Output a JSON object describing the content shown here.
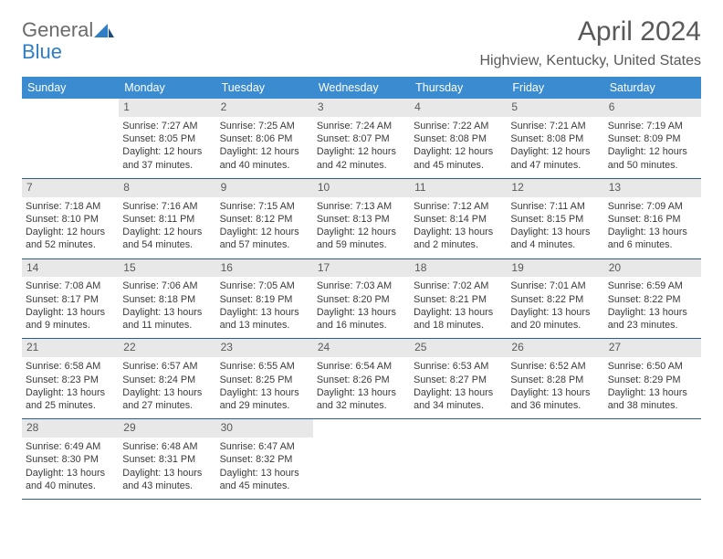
{
  "logo": {
    "word1": "General",
    "word2": "Blue"
  },
  "title": "April 2024",
  "location": "Highview, Kentucky, United States",
  "colors": {
    "header_bg": "#3a8bd0",
    "header_text": "#ffffff",
    "week_border": "#2b5f8a",
    "daynum_bg": "#e8e8e8",
    "text": "#3a3a3a",
    "title_color": "#595959",
    "logo_gray": "#6b6b6b",
    "logo_blue": "#2f7dc4"
  },
  "day_labels": [
    "Sunday",
    "Monday",
    "Tuesday",
    "Wednesday",
    "Thursday",
    "Friday",
    "Saturday"
  ],
  "weeks": [
    [
      {
        "day": "",
        "sunrise": "",
        "sunset": "",
        "daylight_l1": "",
        "daylight_l2": ""
      },
      {
        "day": "1",
        "sunrise": "Sunrise: 7:27 AM",
        "sunset": "Sunset: 8:05 PM",
        "daylight_l1": "Daylight: 12 hours",
        "daylight_l2": "and 37 minutes."
      },
      {
        "day": "2",
        "sunrise": "Sunrise: 7:25 AM",
        "sunset": "Sunset: 8:06 PM",
        "daylight_l1": "Daylight: 12 hours",
        "daylight_l2": "and 40 minutes."
      },
      {
        "day": "3",
        "sunrise": "Sunrise: 7:24 AM",
        "sunset": "Sunset: 8:07 PM",
        "daylight_l1": "Daylight: 12 hours",
        "daylight_l2": "and 42 minutes."
      },
      {
        "day": "4",
        "sunrise": "Sunrise: 7:22 AM",
        "sunset": "Sunset: 8:08 PM",
        "daylight_l1": "Daylight: 12 hours",
        "daylight_l2": "and 45 minutes."
      },
      {
        "day": "5",
        "sunrise": "Sunrise: 7:21 AM",
        "sunset": "Sunset: 8:08 PM",
        "daylight_l1": "Daylight: 12 hours",
        "daylight_l2": "and 47 minutes."
      },
      {
        "day": "6",
        "sunrise": "Sunrise: 7:19 AM",
        "sunset": "Sunset: 8:09 PM",
        "daylight_l1": "Daylight: 12 hours",
        "daylight_l2": "and 50 minutes."
      }
    ],
    [
      {
        "day": "7",
        "sunrise": "Sunrise: 7:18 AM",
        "sunset": "Sunset: 8:10 PM",
        "daylight_l1": "Daylight: 12 hours",
        "daylight_l2": "and 52 minutes."
      },
      {
        "day": "8",
        "sunrise": "Sunrise: 7:16 AM",
        "sunset": "Sunset: 8:11 PM",
        "daylight_l1": "Daylight: 12 hours",
        "daylight_l2": "and 54 minutes."
      },
      {
        "day": "9",
        "sunrise": "Sunrise: 7:15 AM",
        "sunset": "Sunset: 8:12 PM",
        "daylight_l1": "Daylight: 12 hours",
        "daylight_l2": "and 57 minutes."
      },
      {
        "day": "10",
        "sunrise": "Sunrise: 7:13 AM",
        "sunset": "Sunset: 8:13 PM",
        "daylight_l1": "Daylight: 12 hours",
        "daylight_l2": "and 59 minutes."
      },
      {
        "day": "11",
        "sunrise": "Sunrise: 7:12 AM",
        "sunset": "Sunset: 8:14 PM",
        "daylight_l1": "Daylight: 13 hours",
        "daylight_l2": "and 2 minutes."
      },
      {
        "day": "12",
        "sunrise": "Sunrise: 7:11 AM",
        "sunset": "Sunset: 8:15 PM",
        "daylight_l1": "Daylight: 13 hours",
        "daylight_l2": "and 4 minutes."
      },
      {
        "day": "13",
        "sunrise": "Sunrise: 7:09 AM",
        "sunset": "Sunset: 8:16 PM",
        "daylight_l1": "Daylight: 13 hours",
        "daylight_l2": "and 6 minutes."
      }
    ],
    [
      {
        "day": "14",
        "sunrise": "Sunrise: 7:08 AM",
        "sunset": "Sunset: 8:17 PM",
        "daylight_l1": "Daylight: 13 hours",
        "daylight_l2": "and 9 minutes."
      },
      {
        "day": "15",
        "sunrise": "Sunrise: 7:06 AM",
        "sunset": "Sunset: 8:18 PM",
        "daylight_l1": "Daylight: 13 hours",
        "daylight_l2": "and 11 minutes."
      },
      {
        "day": "16",
        "sunrise": "Sunrise: 7:05 AM",
        "sunset": "Sunset: 8:19 PM",
        "daylight_l1": "Daylight: 13 hours",
        "daylight_l2": "and 13 minutes."
      },
      {
        "day": "17",
        "sunrise": "Sunrise: 7:03 AM",
        "sunset": "Sunset: 8:20 PM",
        "daylight_l1": "Daylight: 13 hours",
        "daylight_l2": "and 16 minutes."
      },
      {
        "day": "18",
        "sunrise": "Sunrise: 7:02 AM",
        "sunset": "Sunset: 8:21 PM",
        "daylight_l1": "Daylight: 13 hours",
        "daylight_l2": "and 18 minutes."
      },
      {
        "day": "19",
        "sunrise": "Sunrise: 7:01 AM",
        "sunset": "Sunset: 8:22 PM",
        "daylight_l1": "Daylight: 13 hours",
        "daylight_l2": "and 20 minutes."
      },
      {
        "day": "20",
        "sunrise": "Sunrise: 6:59 AM",
        "sunset": "Sunset: 8:22 PM",
        "daylight_l1": "Daylight: 13 hours",
        "daylight_l2": "and 23 minutes."
      }
    ],
    [
      {
        "day": "21",
        "sunrise": "Sunrise: 6:58 AM",
        "sunset": "Sunset: 8:23 PM",
        "daylight_l1": "Daylight: 13 hours",
        "daylight_l2": "and 25 minutes."
      },
      {
        "day": "22",
        "sunrise": "Sunrise: 6:57 AM",
        "sunset": "Sunset: 8:24 PM",
        "daylight_l1": "Daylight: 13 hours",
        "daylight_l2": "and 27 minutes."
      },
      {
        "day": "23",
        "sunrise": "Sunrise: 6:55 AM",
        "sunset": "Sunset: 8:25 PM",
        "daylight_l1": "Daylight: 13 hours",
        "daylight_l2": "and 29 minutes."
      },
      {
        "day": "24",
        "sunrise": "Sunrise: 6:54 AM",
        "sunset": "Sunset: 8:26 PM",
        "daylight_l1": "Daylight: 13 hours",
        "daylight_l2": "and 32 minutes."
      },
      {
        "day": "25",
        "sunrise": "Sunrise: 6:53 AM",
        "sunset": "Sunset: 8:27 PM",
        "daylight_l1": "Daylight: 13 hours",
        "daylight_l2": "and 34 minutes."
      },
      {
        "day": "26",
        "sunrise": "Sunrise: 6:52 AM",
        "sunset": "Sunset: 8:28 PM",
        "daylight_l1": "Daylight: 13 hours",
        "daylight_l2": "and 36 minutes."
      },
      {
        "day": "27",
        "sunrise": "Sunrise: 6:50 AM",
        "sunset": "Sunset: 8:29 PM",
        "daylight_l1": "Daylight: 13 hours",
        "daylight_l2": "and 38 minutes."
      }
    ],
    [
      {
        "day": "28",
        "sunrise": "Sunrise: 6:49 AM",
        "sunset": "Sunset: 8:30 PM",
        "daylight_l1": "Daylight: 13 hours",
        "daylight_l2": "and 40 minutes."
      },
      {
        "day": "29",
        "sunrise": "Sunrise: 6:48 AM",
        "sunset": "Sunset: 8:31 PM",
        "daylight_l1": "Daylight: 13 hours",
        "daylight_l2": "and 43 minutes."
      },
      {
        "day": "30",
        "sunrise": "Sunrise: 6:47 AM",
        "sunset": "Sunset: 8:32 PM",
        "daylight_l1": "Daylight: 13 hours",
        "daylight_l2": "and 45 minutes."
      },
      {
        "day": "",
        "sunrise": "",
        "sunset": "",
        "daylight_l1": "",
        "daylight_l2": ""
      },
      {
        "day": "",
        "sunrise": "",
        "sunset": "",
        "daylight_l1": "",
        "daylight_l2": ""
      },
      {
        "day": "",
        "sunrise": "",
        "sunset": "",
        "daylight_l1": "",
        "daylight_l2": ""
      },
      {
        "day": "",
        "sunrise": "",
        "sunset": "",
        "daylight_l1": "",
        "daylight_l2": ""
      }
    ]
  ]
}
